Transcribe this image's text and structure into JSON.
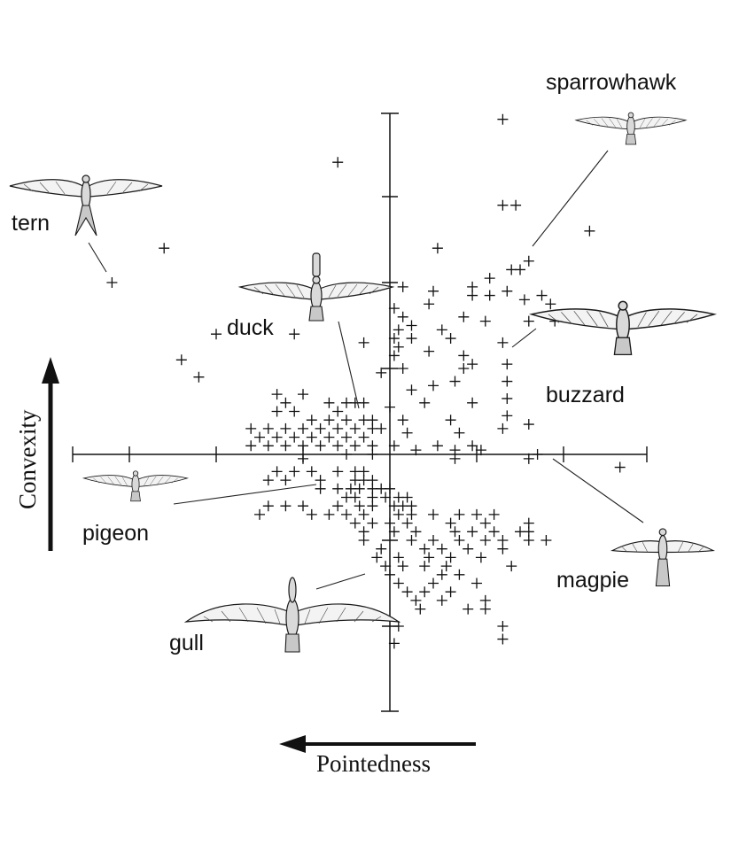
{
  "chart_data": {
    "type": "scatter",
    "title": "",
    "xlabel": "Pointedness",
    "ylabel": "Convexity",
    "x_arrow_direction": "left",
    "y_arrow_direction": "up",
    "xlim": [
      -3.3,
      3.1
    ],
    "ylim": [
      -2.9,
      3.9
    ],
    "x_tick_step": 1,
    "y_tick_step": 1,
    "grid": false,
    "legend": "none",
    "points": [
      [
        -3.2,
        2.0
      ],
      [
        -2.6,
        2.4
      ],
      [
        -0.6,
        3.4
      ],
      [
        -2.0,
        1.4
      ],
      [
        -2.4,
        1.1
      ],
      [
        -2.2,
        0.9
      ],
      [
        -1.1,
        1.4
      ],
      [
        -0.3,
        1.3
      ],
      [
        -1.3,
        0.7
      ],
      [
        -1.2,
        0.6
      ],
      [
        -1.0,
        0.7
      ],
      [
        -0.7,
        0.6
      ],
      [
        -0.5,
        0.6
      ],
      [
        -0.4,
        0.6
      ],
      [
        -0.3,
        0.6
      ],
      [
        -1.3,
        0.5
      ],
      [
        -1.1,
        0.5
      ],
      [
        -0.9,
        0.4
      ],
      [
        -0.7,
        0.4
      ],
      [
        -0.6,
        0.5
      ],
      [
        -0.5,
        0.4
      ],
      [
        -0.3,
        0.4
      ],
      [
        -0.2,
        0.4
      ],
      [
        -1.6,
        0.3
      ],
      [
        -1.4,
        0.3
      ],
      [
        -1.2,
        0.3
      ],
      [
        -1.0,
        0.3
      ],
      [
        -0.8,
        0.3
      ],
      [
        -0.6,
        0.3
      ],
      [
        -0.4,
        0.3
      ],
      [
        -0.2,
        0.3
      ],
      [
        -0.1,
        0.3
      ],
      [
        -1.5,
        0.2
      ],
      [
        -1.3,
        0.2
      ],
      [
        -1.1,
        0.2
      ],
      [
        -0.9,
        0.2
      ],
      [
        -0.7,
        0.2
      ],
      [
        -0.5,
        0.2
      ],
      [
        -0.3,
        0.2
      ],
      [
        -1.6,
        0.1
      ],
      [
        -1.4,
        0.1
      ],
      [
        -1.2,
        0.1
      ],
      [
        -1.0,
        0.1
      ],
      [
        -0.8,
        0.1
      ],
      [
        -0.6,
        0.1
      ],
      [
        -0.4,
        0.1
      ],
      [
        -0.2,
        0.1
      ],
      [
        -1.0,
        -0.05
      ],
      [
        -0.5,
        0.0
      ],
      [
        -0.2,
        0.0
      ],
      [
        -1.3,
        -0.2
      ],
      [
        -1.1,
        -0.2
      ],
      [
        -0.9,
        -0.2
      ],
      [
        -0.6,
        -0.2
      ],
      [
        -0.4,
        -0.2
      ],
      [
        -0.3,
        -0.2
      ],
      [
        -1.4,
        -0.3
      ],
      [
        -1.2,
        -0.3
      ],
      [
        -0.8,
        -0.3
      ],
      [
        -0.4,
        -0.3
      ],
      [
        -0.3,
        -0.3
      ],
      [
        -0.2,
        -0.3
      ],
      [
        -0.8,
        -0.4
      ],
      [
        -0.6,
        -0.4
      ],
      [
        -0.45,
        -0.4
      ],
      [
        -0.35,
        -0.4
      ],
      [
        -0.2,
        -0.4
      ],
      [
        -0.1,
        -0.4
      ],
      [
        0.0,
        -0.4
      ],
      [
        -0.5,
        -0.5
      ],
      [
        -0.4,
        -0.5
      ],
      [
        -0.2,
        -0.5
      ],
      [
        -0.05,
        -0.5
      ],
      [
        0.1,
        -0.5
      ],
      [
        0.2,
        -0.5
      ],
      [
        -1.4,
        -0.6
      ],
      [
        -1.2,
        -0.6
      ],
      [
        -1.0,
        -0.6
      ],
      [
        -0.6,
        -0.6
      ],
      [
        -0.35,
        -0.6
      ],
      [
        -0.2,
        -0.6
      ],
      [
        0.05,
        -0.6
      ],
      [
        0.15,
        -0.6
      ],
      [
        0.25,
        -0.6
      ],
      [
        -1.5,
        -0.7
      ],
      [
        -0.9,
        -0.7
      ],
      [
        -0.7,
        -0.7
      ],
      [
        -0.5,
        -0.7
      ],
      [
        -0.3,
        -0.7
      ],
      [
        0.1,
        -0.7
      ],
      [
        0.25,
        -0.7
      ],
      [
        0.5,
        -0.7
      ],
      [
        0.8,
        -0.7
      ],
      [
        1.0,
        -0.7
      ],
      [
        1.2,
        -0.7
      ],
      [
        -0.4,
        -0.8
      ],
      [
        -0.2,
        -0.8
      ],
      [
        0.0,
        -0.8
      ],
      [
        0.2,
        -0.8
      ],
      [
        0.7,
        -0.8
      ],
      [
        1.1,
        -0.8
      ],
      [
        1.6,
        -0.8
      ],
      [
        -0.3,
        -0.9
      ],
      [
        0.05,
        -0.9
      ],
      [
        0.3,
        -0.9
      ],
      [
        0.75,
        -0.9
      ],
      [
        0.95,
        -0.9
      ],
      [
        1.2,
        -0.9
      ],
      [
        1.5,
        -0.9
      ],
      [
        1.6,
        -0.9
      ],
      [
        -0.3,
        -1.0
      ],
      [
        0.25,
        -1.0
      ],
      [
        0.5,
        -1.0
      ],
      [
        0.8,
        -1.0
      ],
      [
        1.1,
        -1.0
      ],
      [
        1.3,
        -1.0
      ],
      [
        1.6,
        -1.0
      ],
      [
        1.8,
        -1.0
      ],
      [
        -0.1,
        -1.1
      ],
      [
        0.4,
        -1.1
      ],
      [
        0.6,
        -1.1
      ],
      [
        0.9,
        -1.1
      ],
      [
        1.3,
        -1.1
      ],
      [
        -0.15,
        -1.2
      ],
      [
        0.1,
        -1.2
      ],
      [
        0.45,
        -1.2
      ],
      [
        0.7,
        -1.2
      ],
      [
        1.05,
        -1.2
      ],
      [
        -0.05,
        -1.3
      ],
      [
        0.15,
        -1.3
      ],
      [
        0.4,
        -1.3
      ],
      [
        0.65,
        -1.3
      ],
      [
        1.4,
        -1.3
      ],
      [
        0.0,
        -1.4
      ],
      [
        0.6,
        -1.4
      ],
      [
        0.8,
        -1.4
      ],
      [
        0.1,
        -1.5
      ],
      [
        0.5,
        -1.5
      ],
      [
        1.0,
        -1.5
      ],
      [
        0.2,
        -1.6
      ],
      [
        0.4,
        -1.6
      ],
      [
        0.7,
        -1.6
      ],
      [
        0.3,
        -1.7
      ],
      [
        0.6,
        -1.7
      ],
      [
        1.1,
        -1.7
      ],
      [
        0.35,
        -1.8
      ],
      [
        0.9,
        -1.8
      ],
      [
        1.1,
        -1.8
      ],
      [
        0.1,
        -2.0
      ],
      [
        1.3,
        -2.0
      ],
      [
        0.05,
        -2.2
      ],
      [
        1.3,
        -2.15
      ],
      [
        0.05,
        0.1
      ],
      [
        0.3,
        0.05
      ],
      [
        0.55,
        0.1
      ],
      [
        0.75,
        0.05
      ],
      [
        0.95,
        0.1
      ],
      [
        1.05,
        0.05
      ],
      [
        0.75,
        -0.05
      ],
      [
        1.6,
        -0.05
      ],
      [
        1.7,
        0.0
      ],
      [
        2.65,
        -0.15
      ],
      [
        0.2,
        0.25
      ],
      [
        0.8,
        0.25
      ],
      [
        1.3,
        0.3
      ],
      [
        1.6,
        0.35
      ],
      [
        0.15,
        0.4
      ],
      [
        0.7,
        0.4
      ],
      [
        1.35,
        0.45
      ],
      [
        0.0,
        0.55
      ],
      [
        0.4,
        0.6
      ],
      [
        0.95,
        0.6
      ],
      [
        1.35,
        0.65
      ],
      [
        0.25,
        0.75
      ],
      [
        0.5,
        0.8
      ],
      [
        0.75,
        0.85
      ],
      [
        1.35,
        0.85
      ],
      [
        -0.1,
        0.95
      ],
      [
        0.15,
        1.0
      ],
      [
        0.85,
        1.0
      ],
      [
        0.95,
        1.05
      ],
      [
        1.35,
        1.05
      ],
      [
        0.05,
        1.15
      ],
      [
        0.85,
        1.15
      ],
      [
        0.1,
        1.25
      ],
      [
        0.45,
        1.2
      ],
      [
        0.05,
        1.35
      ],
      [
        0.25,
        1.35
      ],
      [
        0.7,
        1.35
      ],
      [
        1.3,
        1.3
      ],
      [
        0.1,
        1.45
      ],
      [
        0.25,
        1.5
      ],
      [
        0.6,
        1.45
      ],
      [
        0.15,
        1.6
      ],
      [
        0.85,
        1.6
      ],
      [
        1.1,
        1.55
      ],
      [
        1.6,
        1.55
      ],
      [
        1.9,
        1.55
      ],
      [
        0.05,
        1.7
      ],
      [
        0.45,
        1.75
      ],
      [
        0.95,
        1.85
      ],
      [
        1.15,
        1.85
      ],
      [
        1.35,
        1.9
      ],
      [
        1.55,
        1.8
      ],
      [
        1.75,
        1.85
      ],
      [
        1.85,
        1.75
      ],
      [
        0.15,
        1.95
      ],
      [
        0.5,
        1.9
      ],
      [
        0.95,
        1.95
      ],
      [
        1.15,
        2.05
      ],
      [
        1.4,
        2.15
      ],
      [
        1.5,
        2.15
      ],
      [
        1.6,
        2.25
      ],
      [
        0.55,
        2.4
      ],
      [
        1.3,
        2.9
      ],
      [
        1.45,
        2.9
      ],
      [
        2.3,
        2.6
      ],
      [
        1.3,
        3.9
      ]
    ]
  },
  "labels": {
    "sparrowhawk": "sparrowhawk",
    "tern": "tern",
    "duck": "duck",
    "buzzard": "buzzard",
    "pigeon": "pigeon",
    "magpie": "magpie",
    "gull": "gull"
  },
  "colors": {
    "ink": "#111111",
    "background": "#ffffff"
  },
  "icons": [
    "tern-drawing-icon",
    "duck-drawing-icon",
    "sparrowhawk-drawing-icon",
    "buzzard-drawing-icon",
    "pigeon-drawing-icon",
    "magpie-drawing-icon",
    "gull-drawing-icon",
    "up-arrow-icon",
    "left-arrow-icon"
  ]
}
